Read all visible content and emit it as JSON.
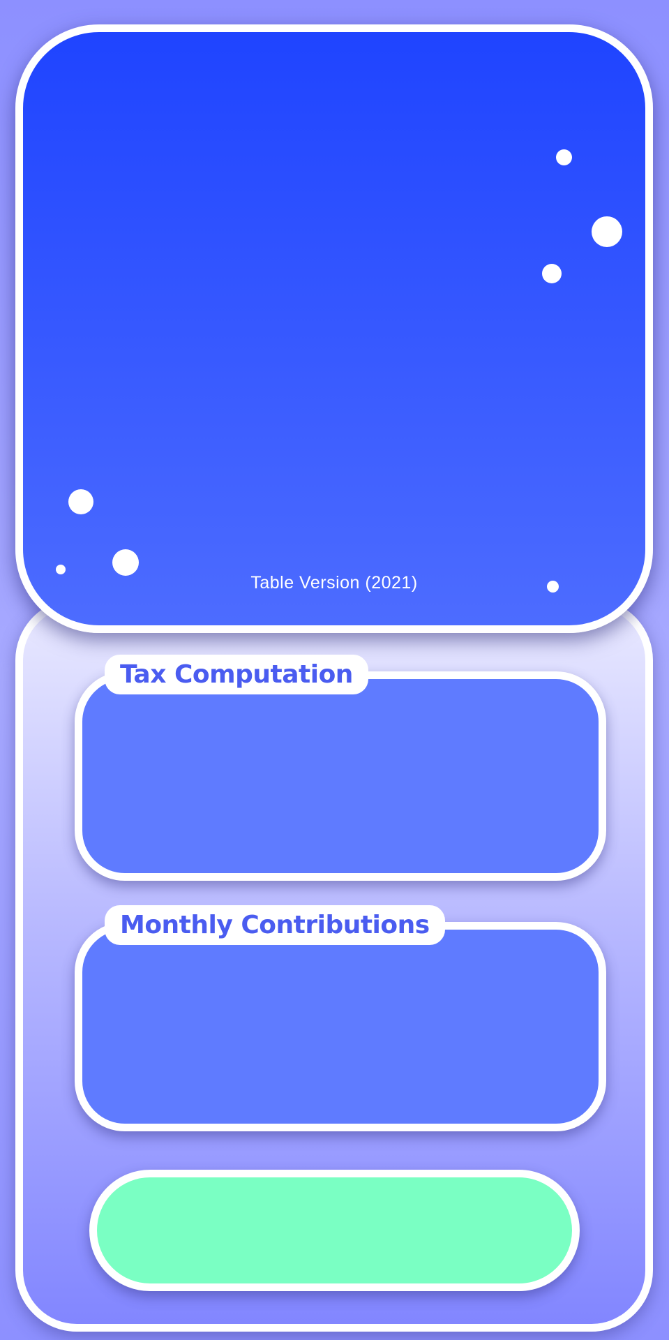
{
  "header": {
    "version_label": "Table Version (2021)"
  },
  "sections": [
    {
      "title": "Tax Computation"
    },
    {
      "title": "Monthly Contributions"
    }
  ],
  "action_button": {
    "label": ""
  },
  "colors": {
    "background": "#8d90ff",
    "header_top": "#1f44ff",
    "header_bottom": "#4d6cff",
    "section_fill": "#5f7bff",
    "section_title": "#4a5cf0",
    "action_button": "#7affc3",
    "border": "#ffffff"
  }
}
